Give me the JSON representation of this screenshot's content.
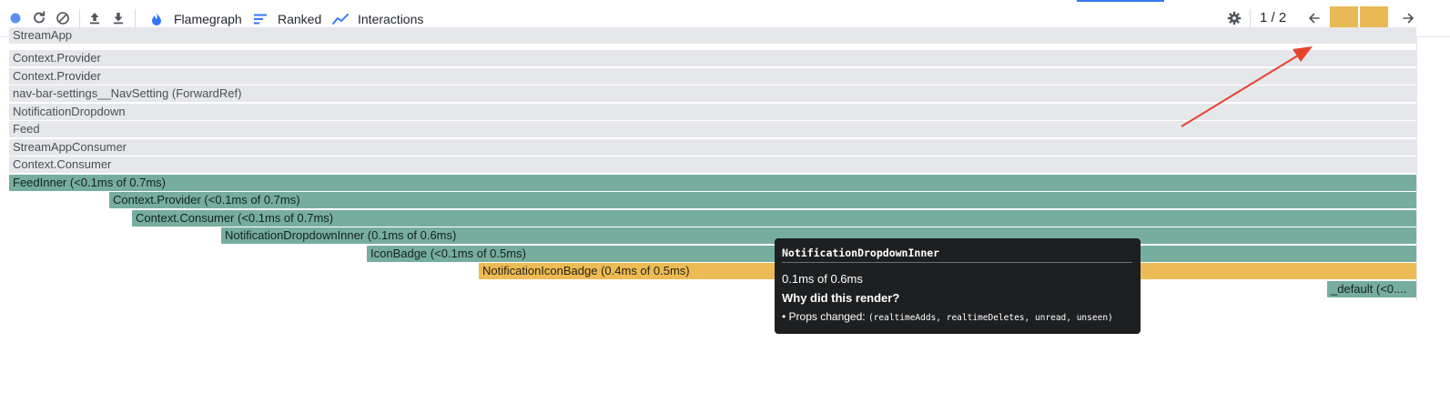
{
  "toolbar": {
    "tabs": [
      {
        "label": "Flamegraph",
        "icon": "flame-icon",
        "active": true
      },
      {
        "label": "Ranked",
        "icon": "ranked-icon",
        "active": false
      },
      {
        "label": "Interactions",
        "icon": "interactions-icon",
        "active": false
      }
    ],
    "page_counter": "1 / 2",
    "colors": {
      "accent": "#3478f6",
      "record": "#5b8ef3",
      "commit": "#e8b955"
    }
  },
  "flamegraph": {
    "rows": [
      {
        "label": "StreamApp",
        "kind": "grey"
      },
      {
        "label": "Context.Provider",
        "kind": "grey"
      },
      {
        "label": "Context.Provider",
        "kind": "grey"
      },
      {
        "label": "nav-bar-settings__NavSetting (ForwardRef)",
        "kind": "grey"
      },
      {
        "label": "NotificationDropdown",
        "kind": "grey"
      },
      {
        "label": "Feed",
        "kind": "grey"
      },
      {
        "label": "StreamAppConsumer",
        "kind": "grey"
      },
      {
        "label": "Context.Consumer",
        "kind": "grey"
      },
      {
        "label": "FeedInner (<0.1ms of 0.7ms)",
        "kind": "teal"
      },
      {
        "label": "Context.Provider (<0.1ms of 0.7ms)",
        "kind": "teal"
      },
      {
        "label": "Context.Consumer (<0.1ms of 0.7ms)",
        "kind": "teal"
      },
      {
        "label": "NotificationDropdownInner (0.1ms of 0.6ms)",
        "kind": "teal"
      },
      {
        "label": "IconBadge (<0.1ms of 0.5ms)",
        "kind": "teal"
      },
      {
        "label": "NotificationIconBadge (0.4ms of 0.5ms)",
        "kind": "yellow"
      },
      {
        "label": "_default (<0....",
        "kind": "teal"
      }
    ],
    "colors": {
      "grey": "#e6e7ea",
      "teal": "#76ad9f",
      "yellow": "#edbb56"
    }
  },
  "tooltip": {
    "title": "NotificationDropdownInner",
    "duration": "0.1ms of 0.6ms",
    "why_heading": "Why did this render?",
    "props_label": "• Props changed:",
    "props_list": "(realtimeAdds, realtimeDeletes, unread, unseen)"
  },
  "annotation": {
    "arrow_color": "#e8432d"
  }
}
